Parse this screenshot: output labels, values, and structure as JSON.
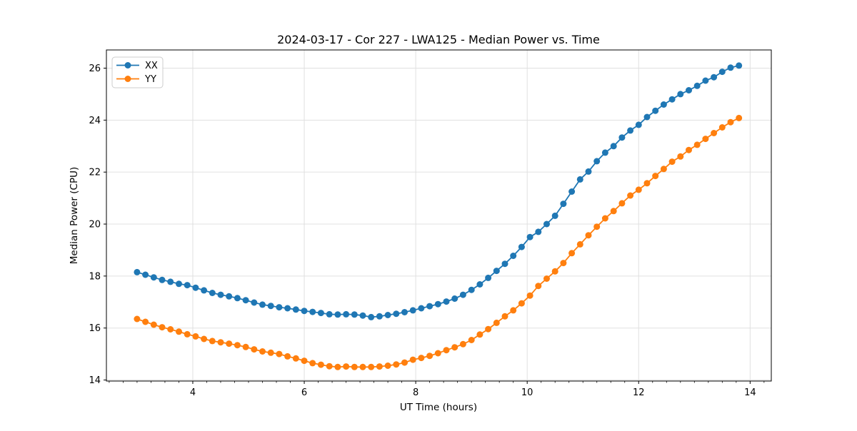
{
  "figure": {
    "background": "#ffffff"
  },
  "chart_data": {
    "type": "line",
    "title": "2024-03-17 - Cor 227 - LWA125 - Median Power vs. Time",
    "xlabel": "UT Time (hours)",
    "ylabel": "Median Power (CPU)",
    "xlim": [
      2.45,
      14.38
    ],
    "ylim": [
      13.96,
      26.7
    ],
    "x_major_ticks": [
      4,
      6,
      8,
      10,
      12,
      14
    ],
    "x_minor_tick_step": 0.25,
    "y_major_ticks": [
      14,
      16,
      18,
      20,
      22,
      24,
      26
    ],
    "grid": true,
    "grid_color": "#e0e0e0",
    "spine_color": "#000000",
    "legend_position": "upper-left",
    "marker": "circle",
    "x": [
      3.0,
      3.15,
      3.3,
      3.45,
      3.6,
      3.75,
      3.9,
      4.05,
      4.2,
      4.35,
      4.5,
      4.65,
      4.8,
      4.95,
      5.1,
      5.25,
      5.4,
      5.55,
      5.7,
      5.85,
      6.0,
      6.15,
      6.3,
      6.45,
      6.6,
      6.75,
      6.9,
      7.05,
      7.2,
      7.35,
      7.5,
      7.65,
      7.8,
      7.95,
      8.1,
      8.25,
      8.4,
      8.55,
      8.7,
      8.85,
      9.0,
      9.15,
      9.3,
      9.45,
      9.6,
      9.75,
      9.9,
      10.05,
      10.2,
      10.35,
      10.5,
      10.65,
      10.8,
      10.95,
      11.1,
      11.25,
      11.4,
      11.55,
      11.7,
      11.85,
      12.0,
      12.15,
      12.3,
      12.45,
      12.6,
      12.75,
      12.9,
      13.05,
      13.2,
      13.35,
      13.5,
      13.65,
      13.8
    ],
    "series": [
      {
        "name": "XX",
        "color": "#1f77b4",
        "values": [
          18.15,
          18.05,
          17.95,
          17.85,
          17.78,
          17.7,
          17.65,
          17.55,
          17.45,
          17.35,
          17.28,
          17.22,
          17.15,
          17.07,
          16.98,
          16.9,
          16.85,
          16.8,
          16.76,
          16.71,
          16.66,
          16.62,
          16.58,
          16.53,
          16.52,
          16.53,
          16.52,
          16.48,
          16.42,
          16.45,
          16.5,
          16.55,
          16.61,
          16.68,
          16.76,
          16.84,
          16.92,
          17.02,
          17.13,
          17.28,
          17.47,
          17.68,
          17.93,
          18.2,
          18.47,
          18.78,
          19.12,
          19.5,
          19.7,
          20.0,
          20.32,
          20.78,
          21.25,
          21.72,
          22.02,
          22.42,
          22.75,
          23.0,
          23.33,
          23.6,
          23.82,
          24.12,
          24.36,
          24.6,
          24.8,
          25.0,
          25.15,
          25.32,
          25.52,
          25.65,
          25.86,
          26.02,
          26.1
        ]
      },
      {
        "name": "YY",
        "color": "#ff7f0e",
        "values": [
          16.35,
          16.24,
          16.13,
          16.03,
          15.95,
          15.86,
          15.76,
          15.68,
          15.58,
          15.5,
          15.45,
          15.4,
          15.34,
          15.27,
          15.18,
          15.1,
          15.05,
          15.0,
          14.91,
          14.83,
          14.74,
          14.65,
          14.59,
          14.53,
          14.5,
          14.52,
          14.5,
          14.5,
          14.5,
          14.52,
          14.55,
          14.6,
          14.67,
          14.78,
          14.85,
          14.93,
          15.03,
          15.15,
          15.26,
          15.38,
          15.54,
          15.75,
          15.96,
          16.2,
          16.45,
          16.68,
          16.95,
          17.25,
          17.62,
          17.9,
          18.18,
          18.5,
          18.88,
          19.22,
          19.57,
          19.9,
          20.22,
          20.5,
          20.8,
          21.1,
          21.32,
          21.57,
          21.85,
          22.12,
          22.4,
          22.6,
          22.85,
          23.05,
          23.28,
          23.5,
          23.72,
          23.92,
          24.08
        ]
      }
    ]
  }
}
